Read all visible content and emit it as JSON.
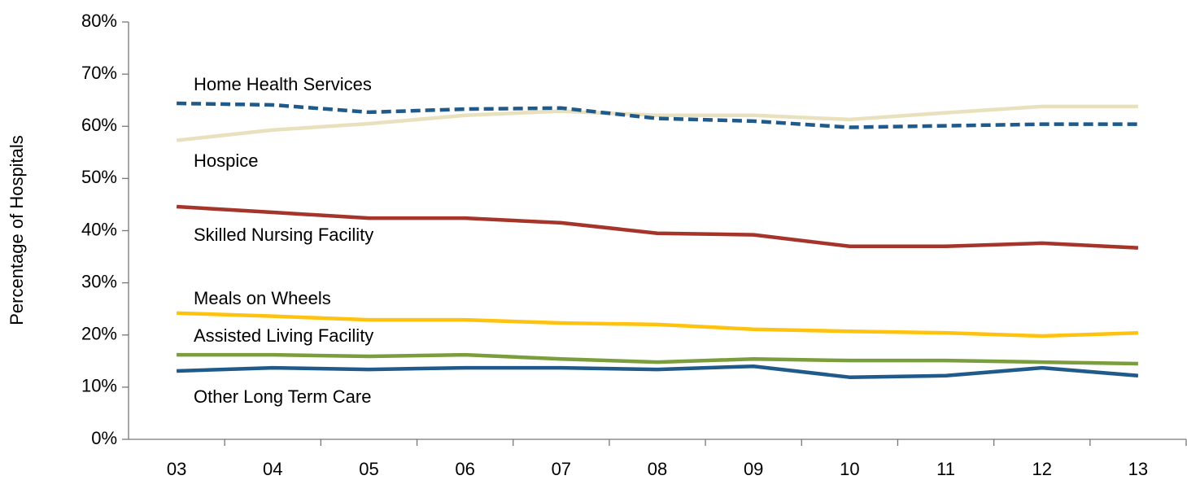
{
  "chart_data": {
    "type": "line",
    "y_label": "Percentage of Hospitals",
    "categories": [
      "03",
      "04",
      "05",
      "06",
      "07",
      "08",
      "09",
      "10",
      "11",
      "12",
      "13"
    ],
    "ylim": [
      0,
      80
    ],
    "yticks": [
      {
        "value": 0,
        "label": "0%"
      },
      {
        "value": 10,
        "label": "10%"
      },
      {
        "value": 20,
        "label": "20%"
      },
      {
        "value": 30,
        "label": "30%"
      },
      {
        "value": 40,
        "label": "40%"
      },
      {
        "value": 50,
        "label": "50%"
      },
      {
        "value": 60,
        "label": "60%"
      },
      {
        "value": 70,
        "label": "70%"
      },
      {
        "value": 80,
        "label": "80%"
      }
    ],
    "grid": false,
    "series": [
      {
        "name": "Home Health Services",
        "color": "#e9e1bd",
        "style": "solid",
        "values": [
          57.3,
          59.3,
          60.5,
          62.1,
          62.9,
          62.1,
          62.1,
          61.3,
          62.6,
          63.8,
          63.8
        ]
      },
      {
        "name": "Hospice",
        "color": "#1f5a8a",
        "style": "dashed",
        "values": [
          64.4,
          64.1,
          62.7,
          63.3,
          63.5,
          61.5,
          61.0,
          59.8,
          60.1,
          60.4,
          60.4
        ]
      },
      {
        "name": "Skilled Nursing Facility",
        "color": "#a5342a",
        "style": "solid",
        "values": [
          44.6,
          43.5,
          42.4,
          42.4,
          41.5,
          39.5,
          39.2,
          37.0,
          37.0,
          37.6,
          36.7
        ]
      },
      {
        "name": "Meals on Wheels",
        "color": "#ffc20e",
        "style": "solid",
        "values": [
          24.2,
          23.6,
          22.9,
          22.9,
          22.3,
          22.0,
          21.1,
          20.7,
          20.4,
          19.8,
          20.4
        ]
      },
      {
        "name": "Assisted Living Facility",
        "color": "#7a9e3c",
        "style": "solid",
        "values": [
          16.2,
          16.2,
          15.9,
          16.2,
          15.4,
          14.8,
          15.4,
          15.1,
          15.1,
          14.8,
          14.5
        ]
      },
      {
        "name": "Other Long Term Care",
        "color": "#1f5a8a",
        "style": "solid",
        "values": [
          13.1,
          13.7,
          13.4,
          13.7,
          13.7,
          13.4,
          14.0,
          11.9,
          12.2,
          13.7,
          12.2
        ]
      }
    ]
  }
}
